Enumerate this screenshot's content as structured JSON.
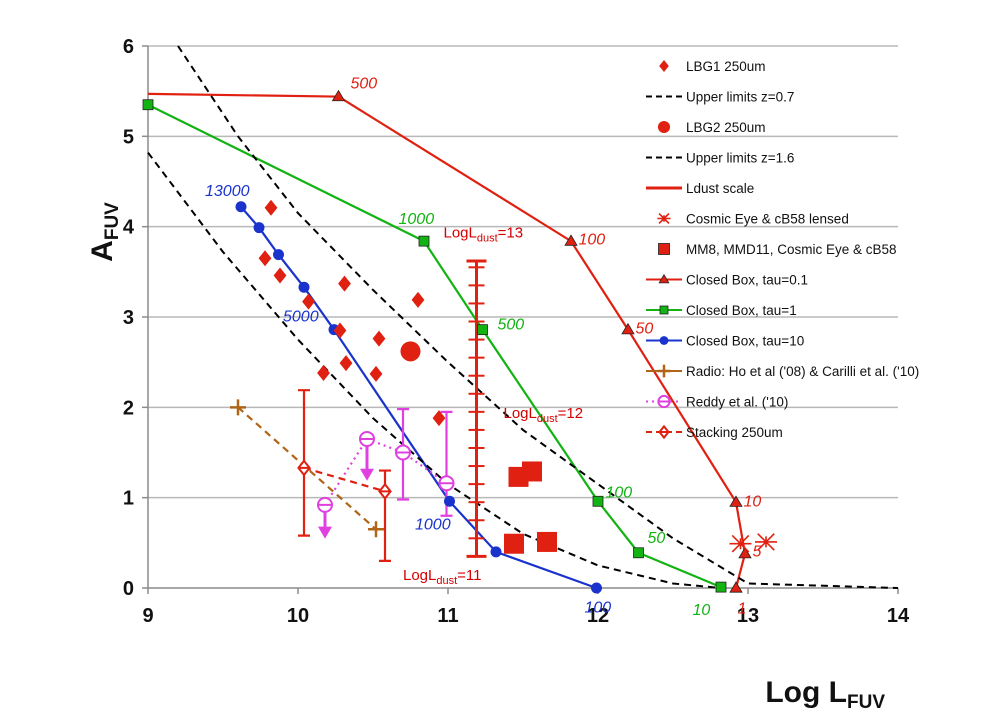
{
  "chart_data": {
    "type": "scatter",
    "title": "",
    "xlabel": "Log L",
    "xlabel_sub": "FUV",
    "ylabel": "A",
    "ylabel_sub": "FUV",
    "xlim": [
      9,
      14
    ],
    "ylim": [
      0,
      6
    ],
    "x_ticks": [
      "9",
      "10",
      "11",
      "12",
      "13",
      "14"
    ],
    "y_ticks": [
      "0",
      "1",
      "2",
      "3",
      "4",
      "5",
      "6"
    ],
    "grid": "horizontal",
    "colors": {
      "red": "#e02010",
      "blue": "#1a33cc",
      "green": "#12b312",
      "brown": "#b06418",
      "magenta": "#e040e0",
      "black": "#000000",
      "dark": "#111111"
    },
    "legend": [
      {
        "label": "LBG1 250um",
        "marker": "diamond",
        "color": "#e02010"
      },
      {
        "label": "Upper limits z=0.7",
        "marker": "dashed",
        "color": "#000000"
      },
      {
        "label": "LBG2 250um",
        "marker": "circle",
        "color": "#e02010"
      },
      {
        "label": "Upper limits z=1.6",
        "marker": "dashed",
        "color": "#000000"
      },
      {
        "label": "Ldust scale",
        "marker": "line",
        "color": "#e02010"
      },
      {
        "label": "Cosmic Eye & cB58 lensed",
        "marker": "star",
        "color": "#e02010"
      },
      {
        "label": "MM8, MMD11, Cosmic Eye & cB58",
        "marker": "square",
        "color": "#e02010"
      },
      {
        "label": "Closed Box, tau=0.1",
        "marker": "triangle-line",
        "color": "#e02010"
      },
      {
        "label": "Closed Box, tau=1",
        "marker": "square-line",
        "color": "#12b312"
      },
      {
        "label": "Closed Box, tau=10",
        "marker": "circle-line",
        "color": "#1a33cc"
      },
      {
        "label": "Radio: Ho et al ('08) & Carilli et al. ('10)",
        "marker": "plus-line",
        "color": "#b06418"
      },
      {
        "label": "Reddy et al. ('10)",
        "marker": "ocircle-dotted",
        "color": "#e040e0"
      },
      {
        "label": "Stacking 250um",
        "marker": "odiamond-dashed",
        "color": "#e02010"
      }
    ],
    "series": [
      {
        "name": "Ldust scale",
        "style": "line",
        "color": "#e02010",
        "x": [
          9.0,
          10.25
        ],
        "y": [
          5.47,
          5.44
        ]
      },
      {
        "name": "Closed Box, tau=0.1",
        "style": "line",
        "marker": "triangle",
        "color": "#e02010",
        "x": [
          10.27,
          11.82,
          12.2,
          12.92,
          12.98,
          12.92
        ],
        "y": [
          5.44,
          3.84,
          2.86,
          0.95,
          0.38,
          0.0
        ]
      },
      {
        "name": "Closed Box, tau=1",
        "style": "line",
        "marker": "square",
        "color": "#12b312",
        "x": [
          9.0,
          10.84,
          11.23,
          12.0,
          12.27,
          12.82
        ],
        "y": [
          5.35,
          3.84,
          2.86,
          0.96,
          0.39,
          0.01
        ]
      },
      {
        "name": "Closed Box, tau=10",
        "style": "line",
        "marker": "circle",
        "color": "#1a33cc",
        "x": [
          9.62,
          9.74,
          9.87,
          10.04,
          10.24,
          11.01,
          11.32,
          11.99
        ],
        "y": [
          4.22,
          3.99,
          3.69,
          3.33,
          2.86,
          0.96,
          0.4,
          0.0
        ]
      },
      {
        "name": "Upper limits z=0.7",
        "style": "dashed",
        "color": "#000000",
        "x": [
          9.2,
          9.6,
          10.0,
          10.5,
          11.0,
          11.5,
          12.0,
          12.5,
          13.0,
          14.0
        ],
        "y": [
          6.0,
          5.0,
          4.15,
          3.3,
          2.5,
          1.75,
          1.15,
          0.55,
          0.05,
          0.0
        ]
      },
      {
        "name": "Upper limits z=1.6",
        "style": "dashed",
        "color": "#000000",
        "x": [
          9.0,
          9.5,
          10.0,
          10.5,
          11.0,
          11.5,
          12.0,
          12.5,
          12.82
        ],
        "y": [
          4.82,
          3.72,
          2.75,
          1.88,
          1.15,
          0.6,
          0.25,
          0.05,
          0.0
        ]
      },
      {
        "name": "Radio: Ho et al ('08) & Carilli et al. ('10)",
        "style": "dashed",
        "marker": "plus",
        "color": "#b06418",
        "x": [
          9.6,
          10.52
        ],
        "y": [
          2.0,
          0.65
        ]
      },
      {
        "name": "Reddy et al. ('10)",
        "style": "dotted",
        "marker": "ocircle",
        "color": "#e040e0",
        "x": [
          10.18,
          10.46,
          10.7,
          10.99
        ],
        "y": [
          0.92,
          1.65,
          1.5,
          1.16
        ]
      },
      {
        "name": "Stacking 250um",
        "style": "dashed",
        "marker": "odiamond",
        "color": "#e02010",
        "x": [
          10.04,
          10.58
        ],
        "y": [
          1.33,
          1.07
        ]
      },
      {
        "name": "LBG1 250um",
        "style": "points",
        "marker": "diamond",
        "color": "#e02010",
        "x": [
          9.82,
          9.78,
          9.88,
          10.07,
          10.28,
          10.31,
          10.54,
          10.8,
          10.17,
          10.32,
          10.52,
          10.94
        ],
        "y": [
          4.21,
          3.65,
          3.46,
          3.17,
          2.85,
          3.37,
          2.76,
          3.19,
          2.38,
          2.49,
          2.37,
          1.88
        ]
      },
      {
        "name": "LBG2 250um",
        "style": "points",
        "marker": "circle",
        "color": "#e02010",
        "x": [
          10.75
        ],
        "y": [
          2.62
        ]
      },
      {
        "name": "MM8, MMD11, Cosmic Eye & cB58",
        "style": "points",
        "marker": "square",
        "color": "#e02010",
        "x": [
          11.47,
          11.56,
          11.44,
          11.66
        ],
        "y": [
          1.23,
          1.29,
          0.49,
          0.51
        ]
      },
      {
        "name": "Cosmic Eye & cB58 lensed",
        "style": "points",
        "marker": "star",
        "color": "#e02010",
        "x": [
          12.95,
          13.12
        ],
        "y": [
          0.49,
          0.51
        ]
      }
    ],
    "error_bars": [
      {
        "series": "Stacking 250um",
        "x": 10.04,
        "y_low": 0.58,
        "y_high": 2.19
      },
      {
        "series": "Stacking 250um",
        "x": 10.58,
        "y_low": 0.3,
        "y_high": 1.3
      },
      {
        "series": "Reddy et al. ('10)",
        "x": 10.7,
        "y_low": 0.98,
        "y_high": 1.98
      },
      {
        "series": "Reddy et al. ('10)",
        "x": 10.99,
        "y_low": 0.8,
        "y_high": 1.95
      }
    ],
    "upper_limit_arrows": [
      {
        "series": "Reddy et al. ('10)",
        "x": 10.18,
        "y_from": 0.92,
        "y_to": 0.58
      },
      {
        "series": "Reddy et al. ('10)",
        "x": 10.46,
        "y_from": 1.65,
        "y_to": 1.22
      }
    ],
    "ldust_scale_bar": {
      "x": 11.19,
      "y_low": 0.35,
      "y_high": 3.62,
      "step": 0.2
    },
    "annotations": [
      {
        "text": "500",
        "x": 10.35,
        "y": 5.53,
        "color": "#e02010",
        "italic": true
      },
      {
        "text": "100",
        "x": 11.87,
        "y": 3.8,
        "color": "#e02010",
        "italic": true
      },
      {
        "text": "50",
        "x": 12.25,
        "y": 2.82,
        "color": "#e02010",
        "italic": true
      },
      {
        "text": "10",
        "x": 12.97,
        "y": 0.9,
        "color": "#e02010",
        "italic": true
      },
      {
        "text": "5",
        "x": 13.03,
        "y": 0.35,
        "color": "#e02010",
        "italic": true
      },
      {
        "text": "1",
        "x": 12.93,
        "y": -0.28,
        "color": "#e02010",
        "italic": true
      },
      {
        "text": "1000",
        "x": 10.67,
        "y": 4.03,
        "color": "#12b312",
        "italic": true
      },
      {
        "text": "500",
        "x": 11.33,
        "y": 2.86,
        "color": "#12b312",
        "italic": true
      },
      {
        "text": "100",
        "x": 12.05,
        "y": 1.0,
        "color": "#12b312",
        "italic": true
      },
      {
        "text": "50",
        "x": 12.33,
        "y": 0.5,
        "color": "#12b312",
        "italic": true
      },
      {
        "text": "10",
        "x": 12.63,
        "y": -0.3,
        "color": "#12b312",
        "italic": true
      },
      {
        "text": "13000",
        "x": 9.38,
        "y": 4.34,
        "color": "#1a33cc",
        "italic": true
      },
      {
        "text": "5000",
        "x": 9.9,
        "y": 2.95,
        "color": "#1a33cc",
        "italic": true
      },
      {
        "text": "1000",
        "x": 10.78,
        "y": 0.65,
        "color": "#1a33cc",
        "italic": true
      },
      {
        "text": "100",
        "x": 11.91,
        "y": -0.27,
        "color": "#1a33cc",
        "italic": true
      }
    ],
    "ldust_labels": [
      {
        "text": "LogL",
        "sub": "dust",
        "suffix": "=13",
        "x": 10.97,
        "y": 3.88
      },
      {
        "text": "LogL",
        "sub": "dust",
        "suffix": "=12",
        "x": 11.37,
        "y": 1.88
      },
      {
        "text": "LogL",
        "sub": "dust",
        "suffix": "=11",
        "x": 10.7,
        "y": 0.09
      }
    ]
  }
}
